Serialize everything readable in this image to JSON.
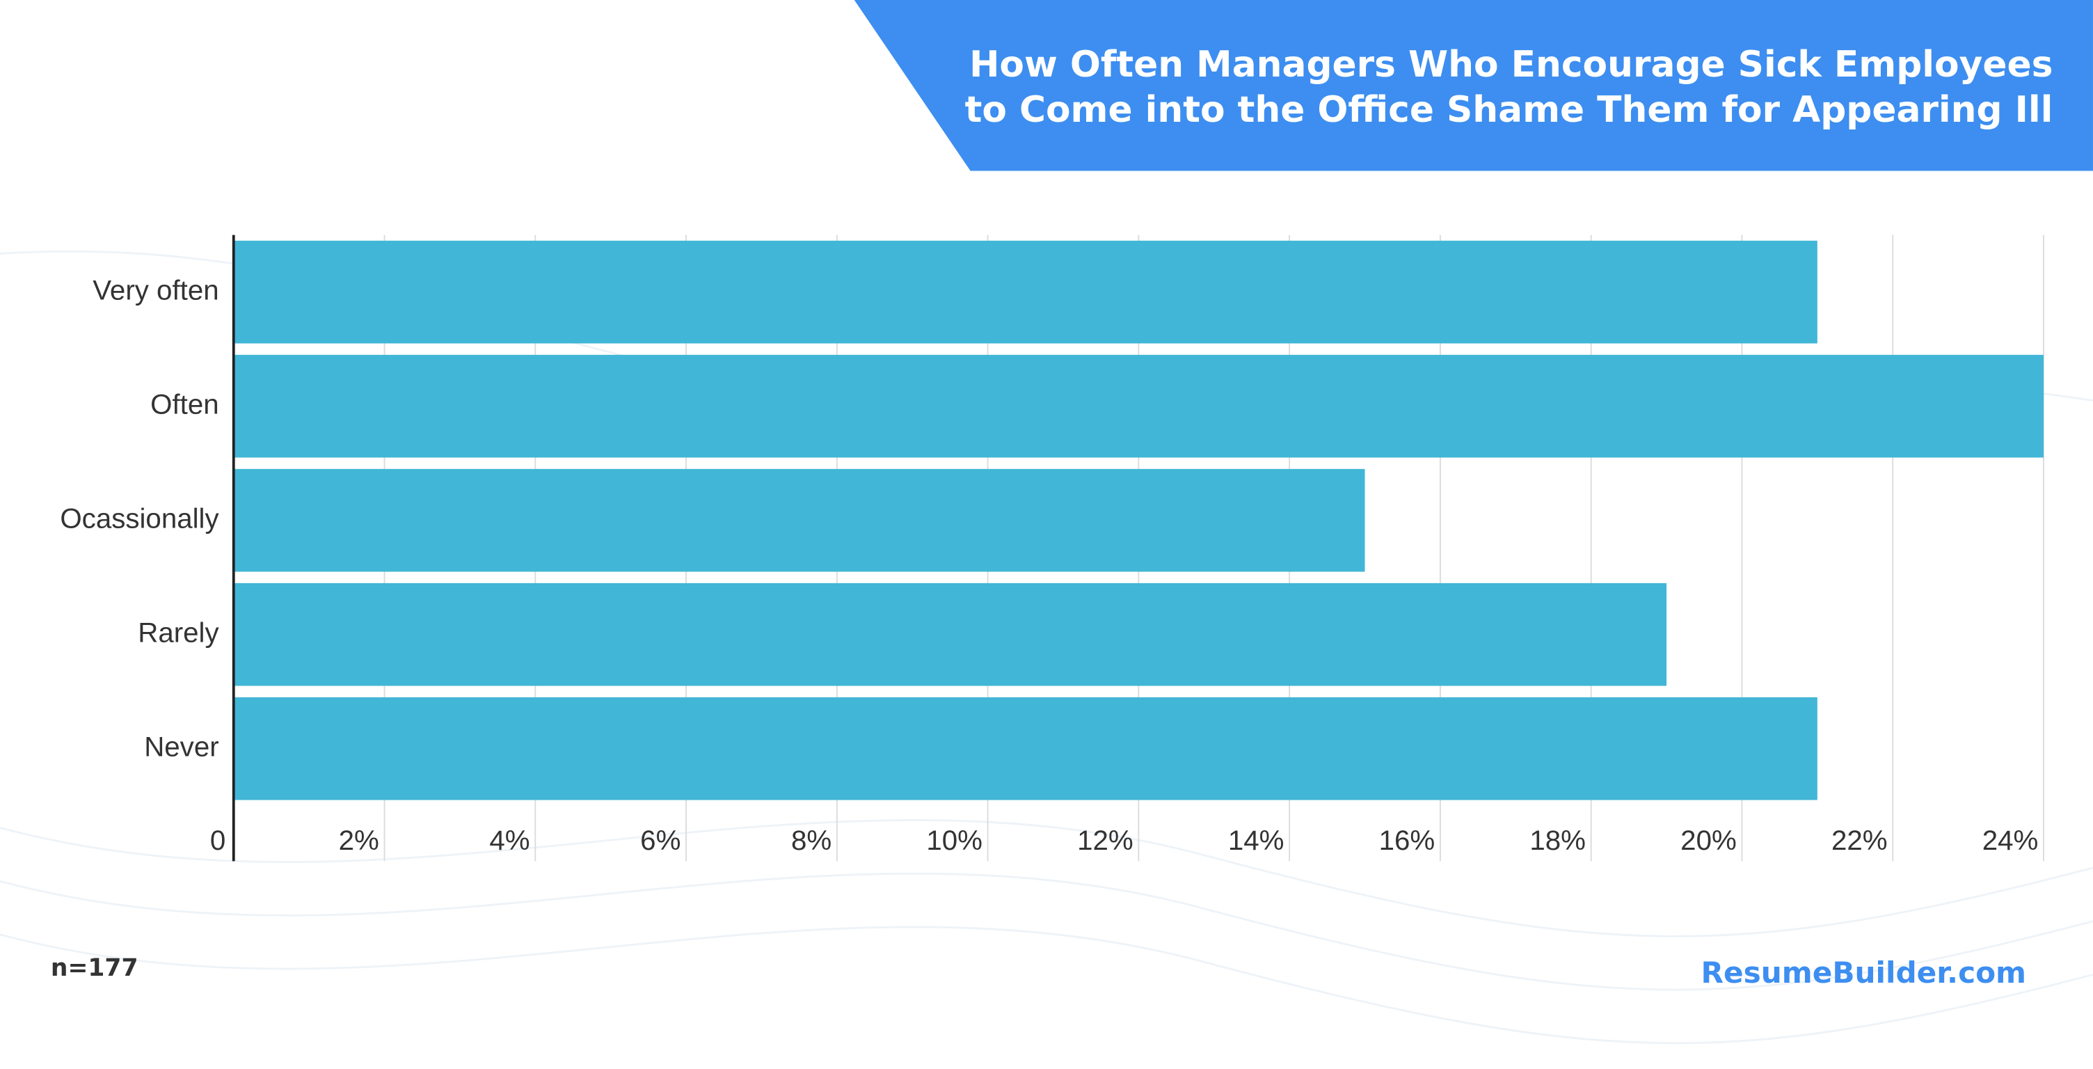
{
  "chart_data": {
    "type": "bar",
    "orientation": "horizontal",
    "title": [
      "How Often Managers Who Encourage Sick Employees",
      "to Come into the Office Shame Them for Appearing Ill"
    ],
    "categories": [
      "Very often",
      "Often",
      "Ocassionally",
      "Rarely",
      "Never"
    ],
    "values": [
      21,
      24,
      15,
      19,
      21
    ],
    "color": "#41b6d6",
    "xlim": [
      0,
      24
    ],
    "xticks": [
      0,
      {
        "value": 2,
        "label": "2%"
      },
      {
        "value": 4,
        "label": "4%"
      },
      {
        "value": 6,
        "label": "6%"
      },
      {
        "value": 8,
        "label": "8%"
      },
      {
        "value": 10,
        "label": "10%"
      },
      {
        "value": 12,
        "label": "12%"
      },
      {
        "value": 14,
        "label": "14%"
      },
      {
        "value": 16,
        "label": "16%"
      },
      {
        "value": 18,
        "label": "18%"
      },
      {
        "value": 20,
        "label": "20%"
      },
      {
        "value": 22,
        "label": "22%"
      },
      {
        "value": 24,
        "label": "24%"
      }
    ],
    "grid": true,
    "footnote": "n=177",
    "source": "ResumeBuilder.com"
  }
}
